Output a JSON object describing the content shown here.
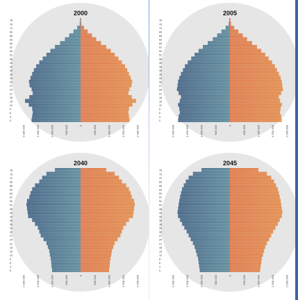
{
  "chart_data": [
    {
      "type": "bar",
      "subtype": "population-pyramid",
      "title": "2000",
      "age_labels": [
        "78",
        "75",
        "72",
        "69",
        "66",
        "63",
        "60",
        "57",
        "54",
        "51",
        "48",
        "45",
        "42",
        "39",
        "36",
        "33",
        "30",
        "27",
        "24",
        "21",
        "18",
        "15",
        "12",
        "9",
        "6",
        "3",
        "0"
      ],
      "x_tick_labels": [
        "2 000 000",
        "1 500 000",
        "1 000 000",
        "500 000",
        "0",
        "500 000",
        "1 000 000",
        "1 500 000",
        "2 000 000"
      ],
      "xlim": [
        -2000000,
        2000000
      ],
      "male": [
        20000,
        30000,
        120000,
        250000,
        400000,
        550000,
        720000,
        900000,
        1060000,
        1200000,
        1330000,
        1450000,
        1560000,
        1640000,
        1700000,
        1760000,
        1810000,
        1790000,
        1720000,
        1680000,
        1800000,
        1950000,
        1820000,
        1700000,
        1680000,
        1700000,
        1720000
      ],
      "female": [
        20000,
        30000,
        120000,
        250000,
        400000,
        550000,
        720000,
        900000,
        1060000,
        1200000,
        1330000,
        1450000,
        1560000,
        1640000,
        1700000,
        1760000,
        1810000,
        1790000,
        1720000,
        1680000,
        1800000,
        1950000,
        1820000,
        1700000,
        1680000,
        1700000,
        1720000
      ]
    },
    {
      "type": "bar",
      "subtype": "population-pyramid",
      "title": "2005",
      "age_labels": [
        "78",
        "75",
        "72",
        "69",
        "66",
        "63",
        "60",
        "57",
        "54",
        "51",
        "48",
        "45",
        "42",
        "39",
        "36",
        "33",
        "30",
        "27",
        "24",
        "21",
        "18",
        "15",
        "12",
        "9",
        "6",
        "3",
        "0"
      ],
      "x_tick_labels": [
        "2 000 000",
        "1 500 000",
        "1 000 000",
        "500 000",
        "0",
        "500 000",
        "1 000 000",
        "1 500 000",
        "2 000 000"
      ],
      "xlim": [
        -2000000,
        2000000
      ],
      "male": [
        20000,
        40000,
        150000,
        300000,
        450000,
        600000,
        780000,
        950000,
        1100000,
        1240000,
        1360000,
        1480000,
        1580000,
        1650000,
        1720000,
        1780000,
        1820000,
        1840000,
        1860000,
        1800000,
        1720000,
        1760000,
        1820000,
        1780000,
        1760000,
        1800000,
        1820000
      ],
      "female": [
        20000,
        40000,
        150000,
        300000,
        450000,
        600000,
        780000,
        950000,
        1100000,
        1240000,
        1360000,
        1480000,
        1580000,
        1650000,
        1720000,
        1780000,
        1820000,
        1840000,
        1860000,
        1800000,
        1720000,
        1760000,
        1820000,
        1780000,
        1760000,
        1800000,
        1820000
      ]
    },
    {
      "type": "bar",
      "subtype": "population-pyramid",
      "title": "2040",
      "age_labels": [
        "78",
        "75",
        "72",
        "69",
        "66",
        "63",
        "60",
        "57",
        "54",
        "51",
        "48",
        "45",
        "42",
        "39",
        "36",
        "33",
        "30",
        "27",
        "24",
        "21",
        "18",
        "15",
        "12",
        "9",
        "6",
        "3",
        "0"
      ],
      "x_tick_labels": [
        "2 000 000",
        "1 500 000",
        "1 000 000",
        "500 000",
        "0",
        "500 000",
        "1 000 000",
        "1 500 000",
        "2 000 000"
      ],
      "xlim": [
        -2000000,
        2000000
      ],
      "male": [
        900000,
        1200000,
        1350000,
        1450000,
        1600000,
        1700000,
        1760000,
        1800000,
        1880000,
        1900000,
        1880000,
        1860000,
        1840000,
        1700000,
        1600000,
        1500000,
        1450000,
        1400000,
        1300000,
        1200000,
        1150000,
        1100000,
        1080000,
        1050000,
        1030000,
        1020000,
        1000000
      ],
      "female": [
        900000,
        1200000,
        1350000,
        1450000,
        1600000,
        1700000,
        1760000,
        1800000,
        1880000,
        1900000,
        1880000,
        1860000,
        1840000,
        1700000,
        1600000,
        1500000,
        1450000,
        1400000,
        1300000,
        1200000,
        1150000,
        1100000,
        1080000,
        1050000,
        1030000,
        1020000,
        1000000
      ]
    },
    {
      "type": "bar",
      "subtype": "population-pyramid",
      "title": "2045",
      "age_labels": [
        "78",
        "75",
        "72",
        "69",
        "66",
        "63",
        "60",
        "57",
        "54",
        "51",
        "48",
        "45",
        "42",
        "39",
        "36",
        "33",
        "30",
        "27",
        "24",
        "21",
        "18",
        "15",
        "12",
        "9",
        "6",
        "3",
        "0"
      ],
      "x_tick_labels": [
        "2 000 000",
        "1 500 000",
        "1 000 000",
        "500 000",
        "0",
        "500 000",
        "1 000 000",
        "1 500 000",
        "2 000 000"
      ],
      "xlim": [
        -2000000,
        2000000
      ],
      "male": [
        1000000,
        1300000,
        1450000,
        1550000,
        1620000,
        1680000,
        1720000,
        1750000,
        1780000,
        1800000,
        1820000,
        1840000,
        1820000,
        1750000,
        1680000,
        1600000,
        1520000,
        1450000,
        1380000,
        1300000,
        1240000,
        1200000,
        1160000,
        1120000,
        1100000,
        1080000,
        1060000
      ],
      "female": [
        1000000,
        1300000,
        1450000,
        1550000,
        1620000,
        1680000,
        1720000,
        1750000,
        1780000,
        1800000,
        1820000,
        1840000,
        1820000,
        1750000,
        1680000,
        1600000,
        1520000,
        1450000,
        1380000,
        1300000,
        1240000,
        1200000,
        1160000,
        1120000,
        1100000,
        1080000,
        1060000
      ]
    }
  ],
  "colors": {
    "male_outer": "#3e5f8f",
    "male_inner": "#8ec9c5",
    "female_inner": "#e9744a",
    "female_outer": "#f2b24e",
    "circle": "#e6e6e6"
  }
}
